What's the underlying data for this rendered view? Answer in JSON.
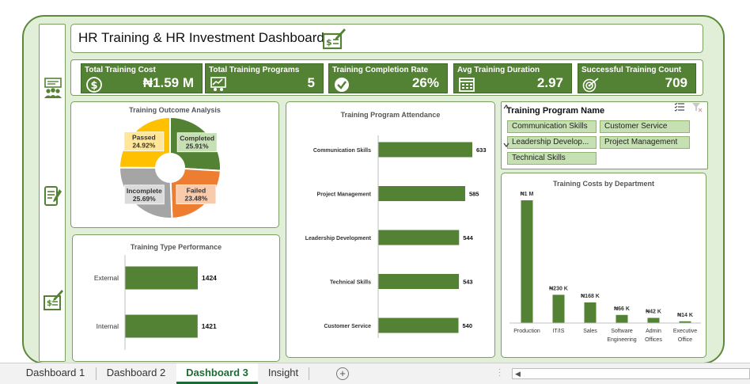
{
  "title": "HR Training & HR Investment Dashboard",
  "colors": {
    "accent": "#548235",
    "bar": "#548235",
    "passed": "#ffc000",
    "completed": "#548235",
    "failed": "#ed7d31",
    "incomplete": "#a5a5a5"
  },
  "icons": {
    "title": "money-check-icon",
    "nav": [
      "training-group-icon",
      "report-icon",
      "money-check-icon"
    ]
  },
  "kpis": [
    {
      "label": "Total Training Cost",
      "value": "₦1.59 M",
      "icon": "dollar-coin-icon"
    },
    {
      "label": "Total Training Programs",
      "value": "5",
      "icon": "presentation-icon"
    },
    {
      "label": "Training Completion Rate",
      "value": "26%",
      "icon": "check-badge-icon"
    },
    {
      "label": "Avg Training Duration",
      "value": "2.97",
      "icon": "calendar-icon"
    },
    {
      "label": "Successful Training Count",
      "value": "709",
      "icon": "target-icon"
    }
  ],
  "slicer": {
    "title": "Training Program Name",
    "items": [
      "Communication Skills",
      "Customer Service",
      "Leadership Develop...",
      "Project Management",
      "Technical Skills"
    ]
  },
  "charts": {
    "outcome": {
      "type": "pie",
      "title": "Training Outcome Analysis",
      "slices": [
        {
          "name": "Completed",
          "value": 25.91,
          "label": "25.91%"
        },
        {
          "name": "Failed",
          "value": 23.48,
          "label": "23.48%"
        },
        {
          "name": "Incomplete",
          "value": 25.69,
          "label": "25.69%"
        },
        {
          "name": "Passed",
          "value": 24.92,
          "label": "24.92%"
        }
      ]
    },
    "attendance": {
      "type": "bar",
      "title": "Training Program Attendance",
      "categories": [
        "Communication Skills",
        "Project Management",
        "Leadership Development",
        "Technical Skills",
        "Customer Service"
      ],
      "values": [
        633,
        585,
        544,
        543,
        540
      ],
      "labels": [
        "633",
        "585",
        "544",
        "543",
        "540"
      ]
    },
    "type_perf": {
      "type": "bar",
      "title": "Training Type Performance",
      "categories": [
        "External",
        "Internal"
      ],
      "values": [
        1424,
        1421
      ],
      "labels": [
        "1424",
        "1421"
      ]
    },
    "dept_costs": {
      "type": "bar",
      "title": "Training Costs by Department",
      "categories": [
        "Production",
        "IT/IS",
        "Sales",
        "Software Engineering",
        "Admin Offices",
        "Executive Office"
      ],
      "category_lines": [
        [
          "Production"
        ],
        [
          "IT/IS"
        ],
        [
          "Sales"
        ],
        [
          "Software",
          "Engineering"
        ],
        [
          "Admin",
          "Offices"
        ],
        [
          "Executive",
          "Office"
        ]
      ],
      "values": [
        1000000,
        230000,
        168000,
        66000,
        42000,
        14000
      ],
      "labels": [
        "₦1 M",
        "₦230 K",
        "₦168 K",
        "₦66 K",
        "₦42 K",
        "₦14 K"
      ]
    }
  },
  "sheet_tabs": [
    {
      "label": "Dashboard 1",
      "active": false
    },
    {
      "label": "Dashboard 2",
      "active": false
    },
    {
      "label": "Dashboard 3",
      "active": true
    },
    {
      "label": "Insight",
      "active": false
    }
  ],
  "add_sheet_label": "+"
}
